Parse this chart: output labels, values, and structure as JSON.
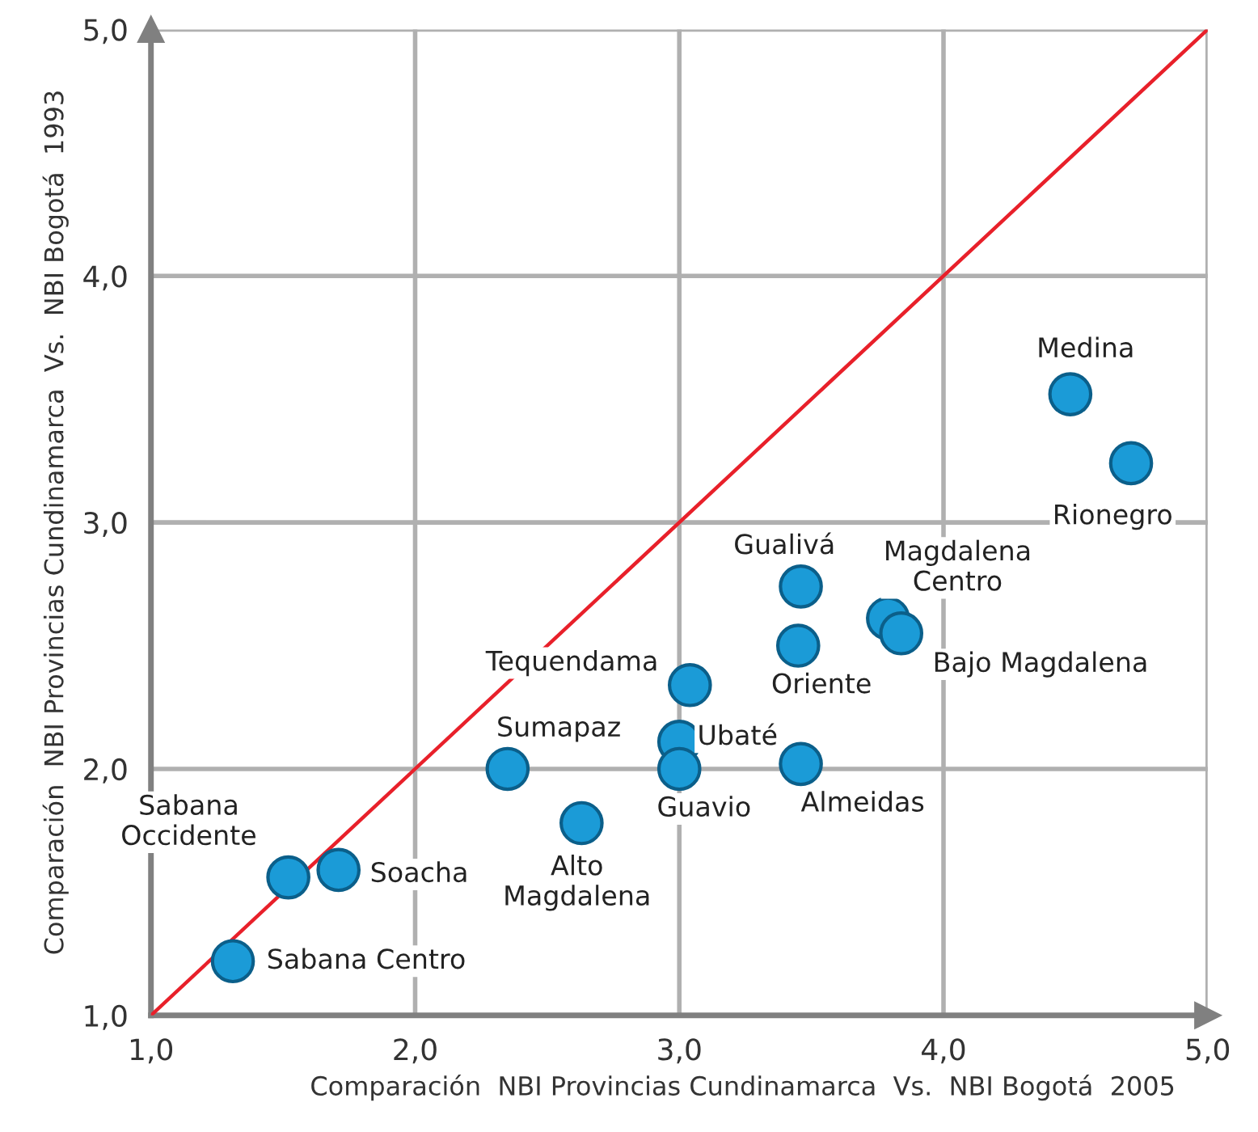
{
  "chart_data": {
    "type": "scatter",
    "xlabel": "Comparación  NBI Provincias Cundinamarca  Vs.  NBI Bogotá  2005",
    "ylabel": "Comparación  NBI Provincias Cundinamarca  Vs.  NBI Bogotá  1993",
    "xlim": [
      1,
      5
    ],
    "ylim": [
      1,
      5
    ],
    "xticks": [
      {
        "value": 1,
        "label": "1,0"
      },
      {
        "value": 2,
        "label": "2,0"
      },
      {
        "value": 3,
        "label": "3,0"
      },
      {
        "value": 4,
        "label": "4,0"
      },
      {
        "value": 5,
        "label": "5,0"
      }
    ],
    "yticks": [
      {
        "value": 1,
        "label": "1,0"
      },
      {
        "value": 2,
        "label": "2,0"
      },
      {
        "value": 3,
        "label": "3,0"
      },
      {
        "value": 4,
        "label": "4,0"
      },
      {
        "value": 5,
        "label": "5,0"
      }
    ],
    "grid": true,
    "series": [
      {
        "marker": "circle",
        "color": "#1b9bd7",
        "x": [
          4.48,
          4.71,
          3.46,
          3.79,
          3.84,
          3.45,
          3.04,
          3.0,
          3.0,
          3.46,
          2.35,
          2.63,
          1.52,
          1.71,
          1.31
        ],
        "values": [
          3.52,
          3.24,
          2.74,
          2.61,
          2.55,
          2.5,
          2.34,
          2.11,
          2.0,
          2.02,
          2.0,
          1.78,
          1.56,
          1.59,
          1.22
        ]
      },
      {
        "type": "line",
        "color": "#e8202a",
        "x": [
          1,
          5
        ],
        "values": [
          1,
          5
        ],
        "marker": "none"
      }
    ],
    "annotations": [
      {
        "text": "Medina",
        "x": 4.48,
        "y": 3.52
      },
      {
        "text": "Rionegro",
        "x": 4.71,
        "y": 3.24
      },
      {
        "text": "Gualivá",
        "x": 3.46,
        "y": 2.74
      },
      {
        "text": "Magdalena\nCentro",
        "x": 3.79,
        "y": 2.61
      },
      {
        "text": "Bajo Magdalena",
        "x": 3.84,
        "y": 2.55
      },
      {
        "text": "Oriente",
        "x": 3.45,
        "y": 2.5
      },
      {
        "text": "Tequendama",
        "x": 3.04,
        "y": 2.34
      },
      {
        "text": "Ubaté",
        "x": 3.0,
        "y": 2.11
      },
      {
        "text": "Guavio",
        "x": 3.0,
        "y": 2.0
      },
      {
        "text": "Almeidas",
        "x": 3.46,
        "y": 2.02
      },
      {
        "text": "Sumapaz",
        "x": 2.35,
        "y": 2.0
      },
      {
        "text": "Alto\nMagdalena",
        "x": 2.63,
        "y": 1.78
      },
      {
        "text": "Sabana\nOccidente",
        "x": 1.52,
        "y": 1.56
      },
      {
        "text": "Soacha",
        "x": 1.71,
        "y": 1.59
      },
      {
        "text": "Sabana Centro",
        "x": 1.31,
        "y": 1.22
      }
    ]
  }
}
